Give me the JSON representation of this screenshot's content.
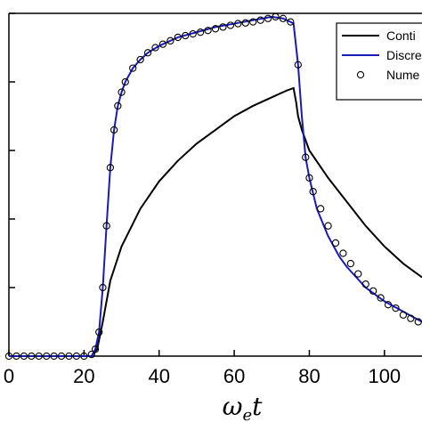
{
  "chart_data": {
    "type": "line",
    "xlabel": "ωet",
    "xlabel_main": "ω",
    "xlabel_sub": "e",
    "xlabel_tail": "t",
    "ylabel": "",
    "xlim": [
      0,
      110
    ],
    "ylim": [
      0,
      1.0
    ],
    "x_ticks": [
      0,
      20,
      40,
      60,
      80,
      100
    ],
    "y_ticks": [
      0,
      0.2,
      0.4,
      0.6,
      0.8,
      1.0
    ],
    "grid": false,
    "legend_position": "top-right",
    "series": [
      {
        "name": "Conti",
        "style": "line",
        "color": "#000000",
        "x": [
          0,
          22,
          23.5,
          25,
          27,
          30,
          35,
          40,
          45,
          50,
          55,
          60,
          65,
          70,
          74,
          75.8,
          76.5,
          77,
          78,
          80,
          85,
          90,
          95,
          100,
          105,
          110
        ],
        "y": [
          0,
          0,
          0.02,
          0.1,
          0.22,
          0.32,
          0.43,
          0.51,
          0.57,
          0.62,
          0.66,
          0.7,
          0.73,
          0.755,
          0.775,
          0.782,
          0.74,
          0.7,
          0.66,
          0.6,
          0.52,
          0.45,
          0.38,
          0.32,
          0.27,
          0.23
        ]
      },
      {
        "name": "Discre",
        "style": "line",
        "color": "#1a1ab8",
        "x": [
          0,
          22,
          23,
          24,
          25,
          26,
          27,
          28,
          29,
          30,
          31,
          33,
          35,
          37,
          40,
          45,
          50,
          55,
          60,
          65,
          70,
          73,
          75,
          75.8,
          77,
          78,
          79,
          80,
          82,
          85,
          88,
          90,
          95,
          100,
          105,
          110
        ],
        "y": [
          0,
          0,
          0.02,
          0.07,
          0.2,
          0.38,
          0.55,
          0.66,
          0.73,
          0.77,
          0.8,
          0.84,
          0.865,
          0.885,
          0.905,
          0.93,
          0.945,
          0.96,
          0.97,
          0.98,
          0.99,
          0.985,
          0.975,
          0.97,
          0.85,
          0.7,
          0.58,
          0.52,
          0.43,
          0.35,
          0.29,
          0.26,
          0.2,
          0.16,
          0.13,
          0.1
        ]
      },
      {
        "name": "Nume",
        "style": "markers",
        "marker": "open-circle",
        "color": "#000000",
        "x": [
          0,
          2,
          4,
          6,
          8,
          10,
          12,
          14,
          16,
          18,
          20,
          22,
          23,
          24,
          25,
          26,
          27,
          28,
          29,
          30,
          31,
          33,
          35,
          37,
          39,
          41,
          43,
          45,
          47,
          49,
          51,
          53,
          55,
          57,
          59,
          61,
          63,
          65,
          67,
          69,
          71,
          73,
          75,
          77,
          79,
          80,
          81,
          83,
          85,
          87,
          89,
          91,
          93,
          95,
          97,
          99,
          101,
          103,
          105,
          107,
          109
        ],
        "y": [
          0,
          0,
          0,
          0,
          0,
          0,
          0,
          0,
          0,
          0,
          0,
          0.005,
          0.02,
          0.07,
          0.2,
          0.38,
          0.55,
          0.66,
          0.73,
          0.77,
          0.8,
          0.84,
          0.865,
          0.885,
          0.9,
          0.91,
          0.92,
          0.93,
          0.935,
          0.94,
          0.945,
          0.95,
          0.955,
          0.96,
          0.965,
          0.97,
          0.972,
          0.975,
          0.98,
          0.985,
          0.99,
          0.985,
          0.975,
          0.85,
          0.58,
          0.52,
          0.48,
          0.43,
          0.38,
          0.33,
          0.3,
          0.27,
          0.24,
          0.21,
          0.19,
          0.17,
          0.15,
          0.14,
          0.12,
          0.11,
          0.1
        ]
      }
    ]
  }
}
